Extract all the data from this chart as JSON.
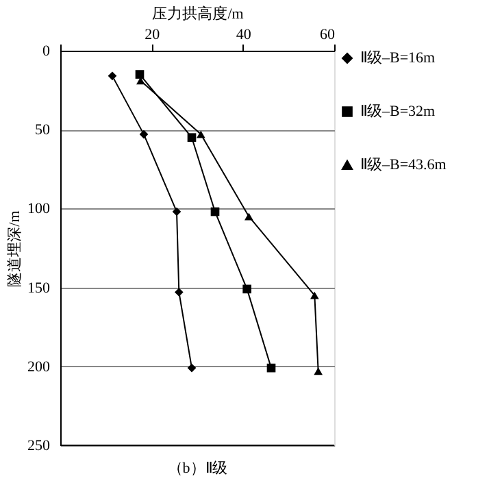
{
  "chart_data": {
    "type": "line",
    "xlabel": "压力拱高度/m",
    "ylabel": "隧道埋深/m",
    "xlim": [
      0,
      60
    ],
    "xticks": [
      {
        "value": 0,
        "label": null
      },
      20,
      40,
      60
    ],
    "ylim": [
      250,
      0
    ],
    "yticks": [
      0,
      50,
      100,
      150,
      200,
      250
    ],
    "grid": "y",
    "legend": "right",
    "line_style": "solid",
    "annotations": [
      "（b）Ⅱ级"
    ],
    "series": [
      {
        "name": "Ⅱ级–B=16m",
        "color": "#000000",
        "marker": "diamond",
        "x": [
          11.4,
          18.3,
          25.5,
          26,
          28.8
        ],
        "values": [
          16,
          53,
          102,
          153,
          201
        ]
      },
      {
        "name": "Ⅱ级–B=32m",
        "color": "#000000",
        "marker": "square",
        "x": [
          17.4,
          28.8,
          33.9,
          40.9,
          46.2
        ],
        "values": [
          15,
          55,
          102,
          151,
          201
        ]
      },
      {
        "name": "Ⅱ级–B=43.6m",
        "color": "#000000",
        "marker": "triangle",
        "x": [
          17.6,
          30.8,
          41.3,
          55.7,
          56.5
        ],
        "values": [
          19,
          53,
          105,
          155,
          203
        ]
      }
    ]
  }
}
